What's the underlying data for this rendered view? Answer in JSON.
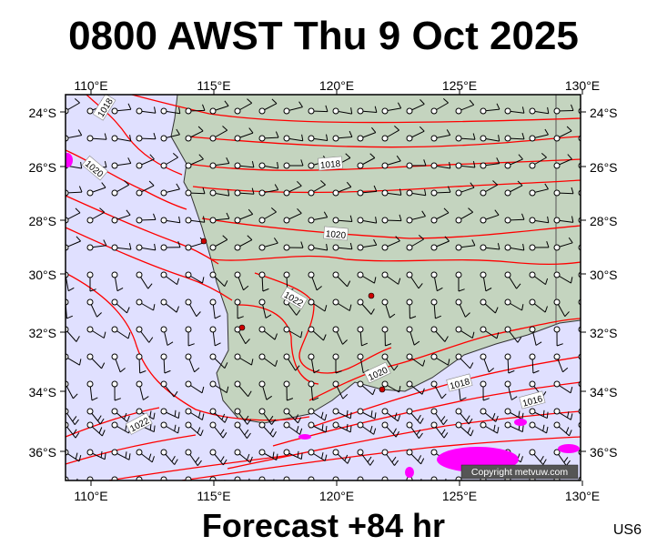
{
  "title": "0800 AWST Thu 9 Oct 2025",
  "footer": "Forecast +84 hr",
  "region_code": "US6",
  "copyright": "Copyright metvuw.com",
  "axes": {
    "lon_labels": [
      "110°E",
      "115°E",
      "120°E",
      "125°E",
      "130°E"
    ],
    "lat_labels": [
      "24°S",
      "26°S",
      "28°S",
      "30°S",
      "32°S",
      "34°S",
      "36°S"
    ]
  },
  "isobar_labels": [
    "1018",
    "1020",
    "1018",
    "1020",
    "1022",
    "1022",
    "1020",
    "1018",
    "1016"
  ],
  "colors": {
    "sea": "#e0e0ff",
    "land": "#c4d4bf",
    "isobar": "#ff0000",
    "rain": "#ff00ff",
    "town": "#cc0000"
  }
}
